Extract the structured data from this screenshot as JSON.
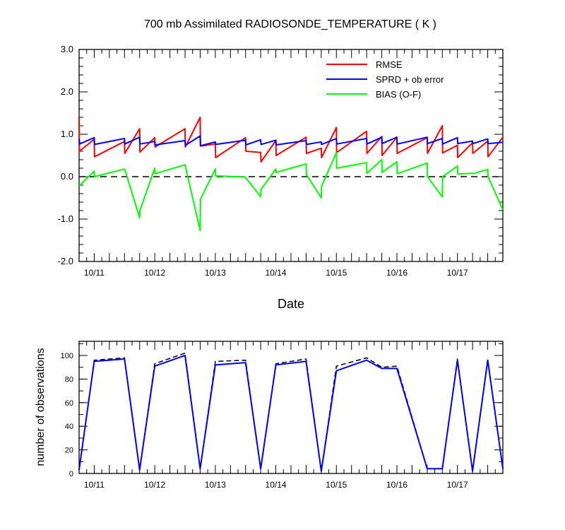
{
  "chart_data": [
    {
      "type": "line",
      "title": "700 mb Assimilated RADIOSONDE_TEMPERATURE ( K )",
      "xlabel": "Date",
      "ylabel": "",
      "ylim": [
        -2.0,
        3.0
      ],
      "yticks": [
        "3.0",
        "2.0",
        "1.0",
        "0.0",
        "-1.0",
        "-2.0"
      ],
      "xlim": [
        0,
        14
      ],
      "x_tick_labels": [
        "10/11",
        "10/12",
        "10/13",
        "10/14",
        "10/15",
        "10/16",
        "10/17"
      ],
      "legend": "top-right",
      "zero_line": "dashed",
      "series": [
        {
          "name": "RMSE",
          "color": "#ff0000",
          "x": [
            0,
            0.01,
            0.5,
            0.51,
            1.5,
            1.51,
            2,
            2.01,
            2.5,
            2.51,
            3.5,
            3.51,
            4,
            4.01,
            4.5,
            4.51,
            5.5,
            5.51,
            6,
            6.01,
            6.5,
            6.51,
            7.5,
            7.51,
            8,
            8.01,
            8.5,
            8.51,
            9.5,
            9.51,
            10,
            10.01,
            10.5,
            10.51,
            11.5,
            11.51,
            12,
            12.01,
            12.5,
            12.51,
            13,
            13.01,
            13.5,
            13.51,
            14
          ],
          "y": [
            1.4,
            0.6,
            0.88,
            0.47,
            0.83,
            0.55,
            1.13,
            0.58,
            0.92,
            0.7,
            1.13,
            0.7,
            1.4,
            0.72,
            0.77,
            0.45,
            0.92,
            0.6,
            0.57,
            0.35,
            0.85,
            0.5,
            0.93,
            0.55,
            0.67,
            0.45,
            1.16,
            0.57,
            1.07,
            0.55,
            0.95,
            0.5,
            0.93,
            0.55,
            0.92,
            0.55,
            1.2,
            0.56,
            0.74,
            0.45,
            0.8,
            0.55,
            0.84,
            0.47,
            0.93
          ]
        },
        {
          "name": "SPRD + ob error",
          "color": "#0000ff",
          "x": [
            0,
            0.01,
            0.5,
            0.51,
            1.5,
            1.51,
            2,
            2.01,
            2.5,
            2.51,
            3.5,
            3.51,
            4,
            4.01,
            4.5,
            4.51,
            5.5,
            5.51,
            6,
            6.01,
            6.5,
            6.51,
            7.5,
            7.51,
            8,
            8.01,
            8.5,
            8.51,
            9.5,
            9.51,
            10,
            10.01,
            10.5,
            10.51,
            11.5,
            11.51,
            12,
            12.01,
            12.5,
            12.51,
            13,
            13.01,
            13.5,
            13.51,
            14
          ],
          "y": [
            0.9,
            0.77,
            0.92,
            0.76,
            0.9,
            0.77,
            0.93,
            0.77,
            0.83,
            0.75,
            0.85,
            0.74,
            0.96,
            0.73,
            0.82,
            0.76,
            0.86,
            0.75,
            0.87,
            0.76,
            0.86,
            0.75,
            0.85,
            0.76,
            0.82,
            0.76,
            0.9,
            0.77,
            0.9,
            0.77,
            0.93,
            0.78,
            0.93,
            0.77,
            0.93,
            0.78,
            0.9,
            0.77,
            0.92,
            0.78,
            0.84,
            0.78,
            0.89,
            0.78,
            0.81
          ]
        },
        {
          "name": "BIAS (O-F)",
          "color": "#00ff00",
          "x": [
            0,
            0.5,
            0.51,
            1.5,
            1.51,
            2,
            2.01,
            2.5,
            2.51,
            3.5,
            3.51,
            4,
            4.01,
            4.5,
            4.51,
            5.5,
            5.51,
            6,
            6.01,
            6.5,
            6.51,
            7.5,
            7.51,
            8,
            8.01,
            8.5,
            8.51,
            9.5,
            9.51,
            10,
            10.01,
            10.5,
            10.51,
            11.5,
            11.51,
            12,
            12.01,
            12.5,
            12.51,
            13,
            13.01,
            13.5,
            13.51,
            14
          ],
          "y": [
            -0.22,
            0.13,
            0.0,
            0.18,
            0.17,
            -0.97,
            -0.8,
            0.2,
            0.07,
            0.28,
            0.25,
            -1.27,
            -0.53,
            0.18,
            0.02,
            -0.01,
            -0.03,
            -0.47,
            -0.3,
            0.18,
            0.1,
            0.3,
            0.05,
            -0.5,
            -0.23,
            0.57,
            0.2,
            0.33,
            0.08,
            0.4,
            0.1,
            0.35,
            0.07,
            0.32,
            0.0,
            -0.48,
            0.0,
            0.25,
            0.06,
            0.08,
            0.07,
            0.17,
            0.0,
            -0.78
          ]
        }
      ]
    },
    {
      "type": "line",
      "title": "",
      "xlabel": "",
      "ylabel": "number of observations",
      "ylim": [
        0,
        112
      ],
      "yticks": [
        "100",
        "80",
        "60",
        "40",
        "20",
        "0"
      ],
      "xlim": [
        0,
        14
      ],
      "x_tick_labels": [
        "10/11",
        "10/12",
        "10/13",
        "10/14",
        "10/15",
        "10/16",
        "10/17"
      ],
      "series": [
        {
          "name": "",
          "color": "#0000ff",
          "style": "solid",
          "x": [
            0,
            0.5,
            1.5,
            2,
            2.5,
            3.5,
            4,
            4.5,
            5.5,
            6,
            6.5,
            7.5,
            8,
            8.5,
            9.5,
            10,
            10.5,
            11.5,
            12,
            12.5,
            13,
            13.5,
            14
          ],
          "y": [
            3,
            95,
            97,
            3,
            91,
            100,
            4,
            92,
            94,
            4,
            92,
            95,
            2,
            87,
            96,
            89,
            89,
            4,
            4,
            96,
            2,
            96,
            4
          ]
        },
        {
          "name": "",
          "color": "#000000",
          "style": "dashed",
          "x": [
            0,
            0.5,
            1.5,
            2,
            2.5,
            3.5,
            4,
            4.5,
            5.5,
            6,
            6.5,
            7.5,
            8,
            8.5,
            9.5,
            10,
            10.5,
            11.5,
            12,
            12.5,
            13,
            13.5,
            14
          ],
          "y": [
            3,
            96,
            98,
            3,
            93,
            102,
            4,
            95,
            96,
            4,
            93,
            97,
            2,
            91,
            98,
            90,
            91,
            4,
            4,
            97,
            2,
            97,
            4
          ]
        }
      ]
    }
  ]
}
